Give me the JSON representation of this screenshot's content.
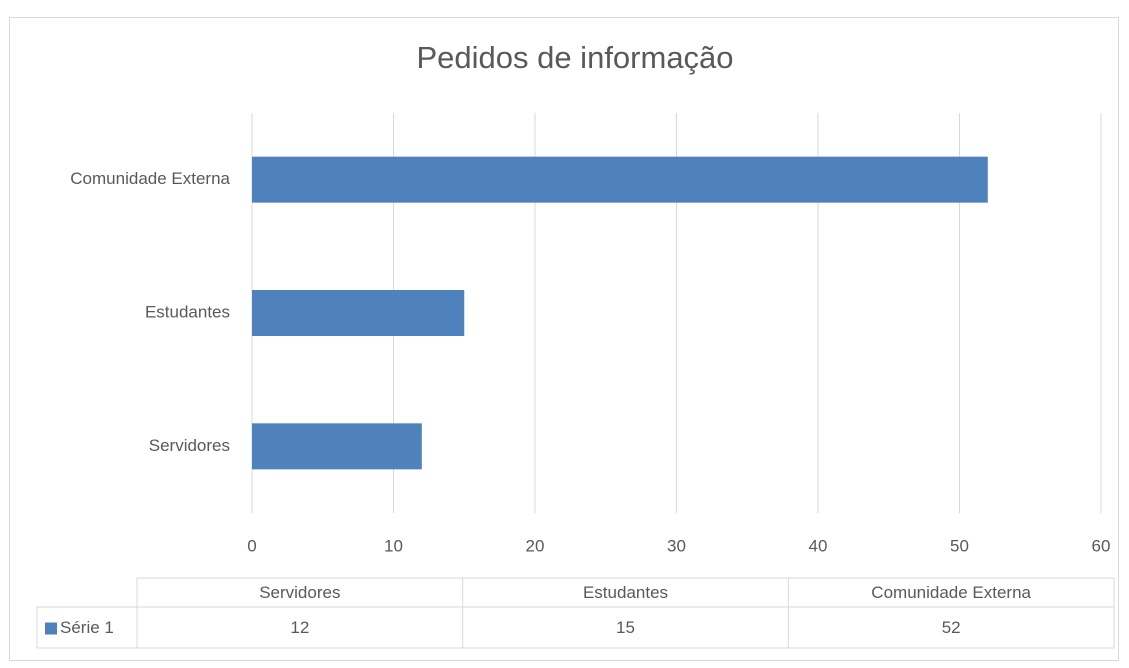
{
  "chart_data": {
    "type": "bar",
    "orientation": "horizontal",
    "title": "Pedidos de informação",
    "categories": [
      "Servidores",
      "Estudantes",
      "Comunidade Externa"
    ],
    "series": [
      {
        "name": "Série 1",
        "color": "#4f81bd",
        "values": [
          12,
          15,
          52
        ]
      }
    ],
    "xlim": [
      0,
      60
    ],
    "xticks": [
      0,
      10,
      20,
      30,
      40,
      50,
      60
    ],
    "grid": true,
    "data_table": true
  }
}
